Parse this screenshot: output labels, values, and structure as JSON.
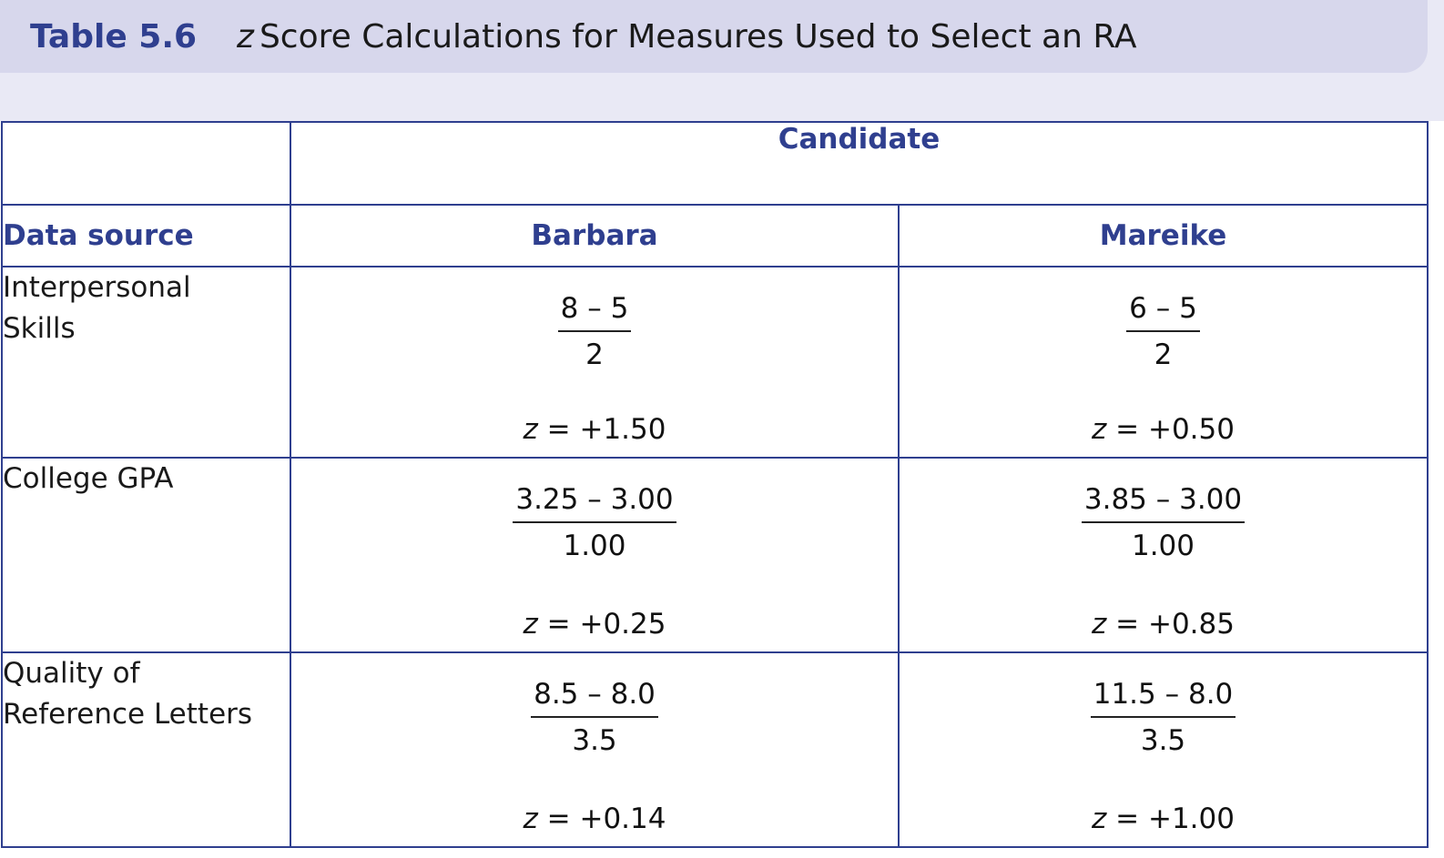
{
  "title": {
    "number": "Table 5.6",
    "variable": "z",
    "caption": "Score Calculations for Measures Used to Select an RA"
  },
  "table": {
    "group_header": "Candidate",
    "row_header": "Data source",
    "columns": [
      "Barbara",
      "Mareike"
    ],
    "rows": [
      {
        "source": [
          "Interpersonal",
          "Skills"
        ],
        "cells": [
          {
            "numerator": "8 – 5",
            "denominator": "2",
            "z_symbol": "z",
            "z_value": "= +1.50"
          },
          {
            "numerator": "6 – 5",
            "denominator": "2",
            "z_symbol": "z",
            "z_value": "= +0.50"
          }
        ]
      },
      {
        "source": [
          "College GPA"
        ],
        "cells": [
          {
            "numerator": "3.25 – 3.00",
            "denominator": "1.00",
            "z_symbol": "z",
            "z_value": "= +0.25"
          },
          {
            "numerator": "3.85 – 3.00",
            "denominator": "1.00",
            "z_symbol": "z",
            "z_value": "= +0.85"
          }
        ]
      },
      {
        "source": [
          "Quality of",
          "Reference Letters"
        ],
        "cells": [
          {
            "numerator": "8.5 – 8.0",
            "denominator": "3.5",
            "z_symbol": "z",
            "z_value": "= +0.14"
          },
          {
            "numerator": "11.5 – 8.0",
            "denominator": "3.5",
            "z_symbol": "z",
            "z_value": "= +1.00"
          }
        ]
      }
    ]
  },
  "colors": {
    "accent": "#2f3f8f",
    "title_bar": "#d7d7ec",
    "band": "#e9e9f5"
  }
}
